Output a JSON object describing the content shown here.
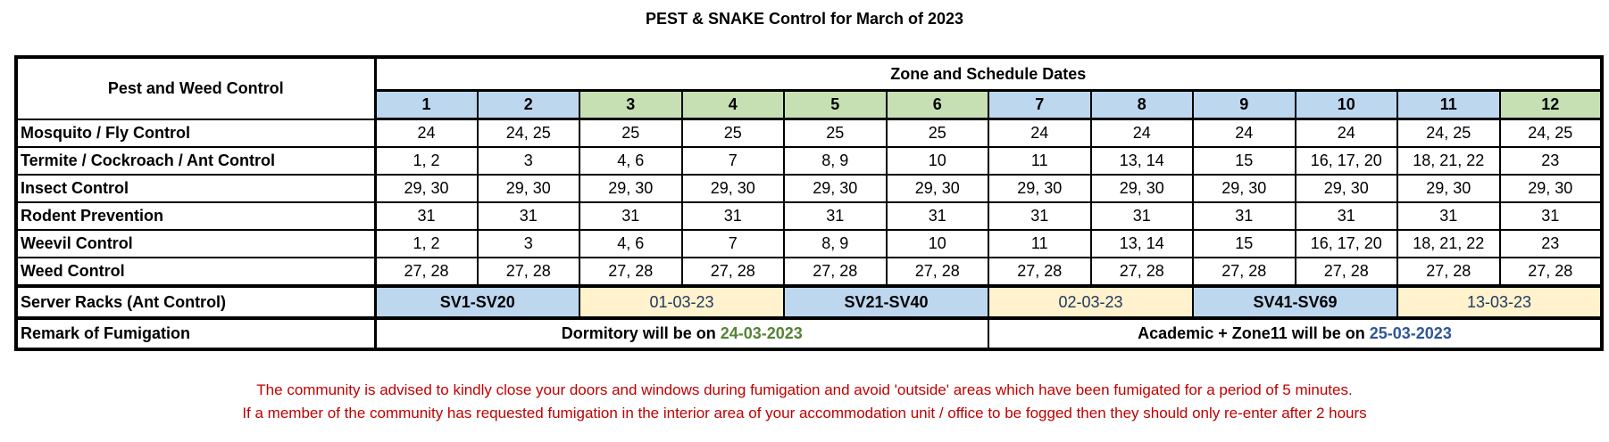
{
  "title": "PEST & SNAKE Control for March of 2023",
  "header": {
    "corner": "Pest and Weed Control",
    "group": "Zone and Schedule Dates",
    "zones": [
      {
        "label": "1",
        "color": "#BDD7EE"
      },
      {
        "label": "2",
        "color": "#BDD7EE"
      },
      {
        "label": "3",
        "color": "#C6E0B4"
      },
      {
        "label": "4",
        "color": "#C6E0B4"
      },
      {
        "label": "5",
        "color": "#C6E0B4"
      },
      {
        "label": "6",
        "color": "#C6E0B4"
      },
      {
        "label": "7",
        "color": "#BDD7EE"
      },
      {
        "label": "8",
        "color": "#BDD7EE"
      },
      {
        "label": "9",
        "color": "#BDD7EE"
      },
      {
        "label": "10",
        "color": "#BDD7EE"
      },
      {
        "label": "11",
        "color": "#BDD7EE"
      },
      {
        "label": "12",
        "color": "#C6E0B4"
      }
    ]
  },
  "rows": [
    {
      "label": "Mosquito / Fly Control",
      "values": [
        "24",
        "24, 25",
        "25",
        "25",
        "25",
        "25",
        "24",
        "24",
        "24",
        "24",
        "24, 25",
        "24, 25"
      ]
    },
    {
      "label": "Termite / Cockroach / Ant Control",
      "values": [
        "1, 2",
        "3",
        "4, 6",
        "7",
        "8, 9",
        "10",
        "11",
        "13, 14",
        "15",
        "16, 17, 20",
        "18, 21, 22",
        "23"
      ]
    },
    {
      "label": "Insect Control",
      "values": [
        "29, 30",
        "29, 30",
        "29, 30",
        "29, 30",
        "29, 30",
        "29, 30",
        "29, 30",
        "29, 30",
        "29, 30",
        "29, 30",
        "29, 30",
        "29, 30"
      ]
    },
    {
      "label": "Rodent Prevention",
      "values": [
        "31",
        "31",
        "31",
        "31",
        "31",
        "31",
        "31",
        "31",
        "31",
        "31",
        "31",
        "31"
      ]
    },
    {
      "label": "Weevil Control",
      "values": [
        "1, 2",
        "3",
        "4, 6",
        "7",
        "8, 9",
        "10",
        "11",
        "13, 14",
        "15",
        "16, 17, 20",
        "18, 21, 22",
        "23"
      ]
    },
    {
      "label": "Weed Control",
      "values": [
        "27, 28",
        "27, 28",
        "27, 28",
        "27, 28",
        "27, 28",
        "27, 28",
        "27, 28",
        "27, 28",
        "27, 28",
        "27, 28",
        "27, 28",
        "27, 28"
      ]
    }
  ],
  "server_racks": {
    "label": "Server Racks (Ant Control)",
    "cells": [
      {
        "text": "SV1-SV20",
        "type": "range",
        "color": "#BDD7EE"
      },
      {
        "text": "01-03-23",
        "type": "date",
        "color": "#FFF2CC"
      },
      {
        "text": "SV21-SV40",
        "type": "range",
        "color": "#BDD7EE"
      },
      {
        "text": "02-03-23",
        "type": "date",
        "color": "#FFF2CC"
      },
      {
        "text": "SV41-SV69",
        "type": "range",
        "color": "#BDD7EE"
      },
      {
        "text": "13-03-23",
        "type": "date",
        "color": "#FFF2CC"
      }
    ]
  },
  "remark": {
    "label": "Remark of Fumigation",
    "dormitory": {
      "text": "Dormitory will be on ",
      "date": "24-03-2023",
      "date_color": "#548235"
    },
    "academic": {
      "text": "Academic + Zone11 will be on ",
      "date": "25-03-2023",
      "date_color": "#2F5597"
    }
  },
  "notes": [
    "The community is advised to kindly close your doors and windows during fumigation and avoid 'outside' areas which have been fumigated for a period of 5 minutes.",
    "If a member of the community has requested fumigation in the interior area of your accommodation unit / office to be fogged then they should only re-enter after 2 hours"
  ],
  "colors": {
    "note": "#C00000",
    "zone_blue": "#BDD7EE",
    "zone_green": "#C6E0B4",
    "date_beige": "#FFF2CC"
  }
}
